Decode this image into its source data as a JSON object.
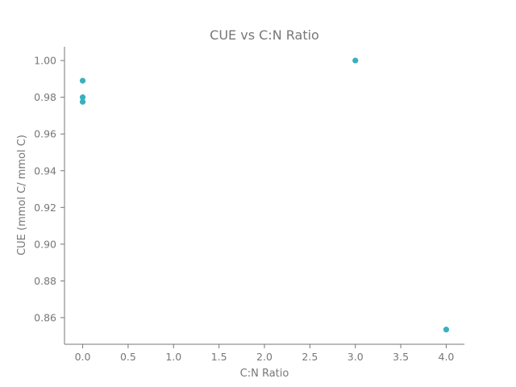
{
  "chart_data": {
    "type": "scatter",
    "title": "CUE vs C:N Ratio",
    "xlabel": "C:N Ratio",
    "ylabel": "CUE (mmol C/ mmol C)",
    "xlim": [
      -0.2,
      4.2
    ],
    "ylim": [
      0.8455,
      1.0075
    ],
    "xticks": [
      0.0,
      0.5,
      1.0,
      1.5,
      2.0,
      2.5,
      3.0,
      3.5,
      4.0
    ],
    "xtick_labels": [
      "0.0",
      "0.5",
      "1.0",
      "1.5",
      "2.0",
      "2.5",
      "3.0",
      "3.5",
      "4.0"
    ],
    "yticks": [
      0.86,
      0.88,
      0.9,
      0.92,
      0.94,
      0.96,
      0.98,
      1.0
    ],
    "ytick_labels": [
      "0.86",
      "0.88",
      "0.90",
      "0.92",
      "0.94",
      "0.96",
      "0.98",
      "1.00"
    ],
    "grid": false,
    "marker_color": "#3ab0bf",
    "axis_color": "#777777",
    "text_color": "#777777",
    "series": [
      {
        "x": [
          0.0,
          0.0,
          0.0,
          3.0,
          4.0
        ],
        "y": [
          0.989,
          0.98,
          0.9775,
          1.0,
          0.8535
        ]
      }
    ]
  }
}
